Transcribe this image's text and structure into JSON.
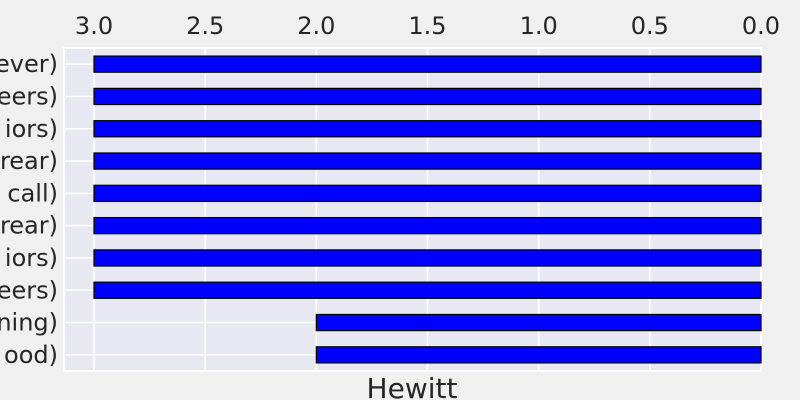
{
  "chart_data": {
    "type": "bar",
    "orientation": "horizontal",
    "x_axis_inverted": true,
    "x_axis_position": "top",
    "categories": [
      "ever)",
      "eers)",
      "iors)",
      "rear)",
      "call)",
      "rear)",
      "iors)",
      "eers)",
      "ning)",
      "ood)"
    ],
    "values": [
      3,
      3,
      3,
      3,
      3,
      3,
      3,
      3,
      2,
      2
    ],
    "xlabel": "Hewitt",
    "ylabel": "",
    "xlim": [
      3.135,
      0
    ],
    "x_ticks": [
      "3.0",
      "2.5",
      "2.0",
      "1.5",
      "1.0",
      "0.5",
      "0.0"
    ],
    "grid": true,
    "colors": {
      "bar_fill": "#0000ff",
      "bar_edge": "#000000",
      "plot_background": "#e8e8f2",
      "figure_background": "#f0f0f0",
      "grid": "#ffffff",
      "text": "#262626"
    }
  }
}
